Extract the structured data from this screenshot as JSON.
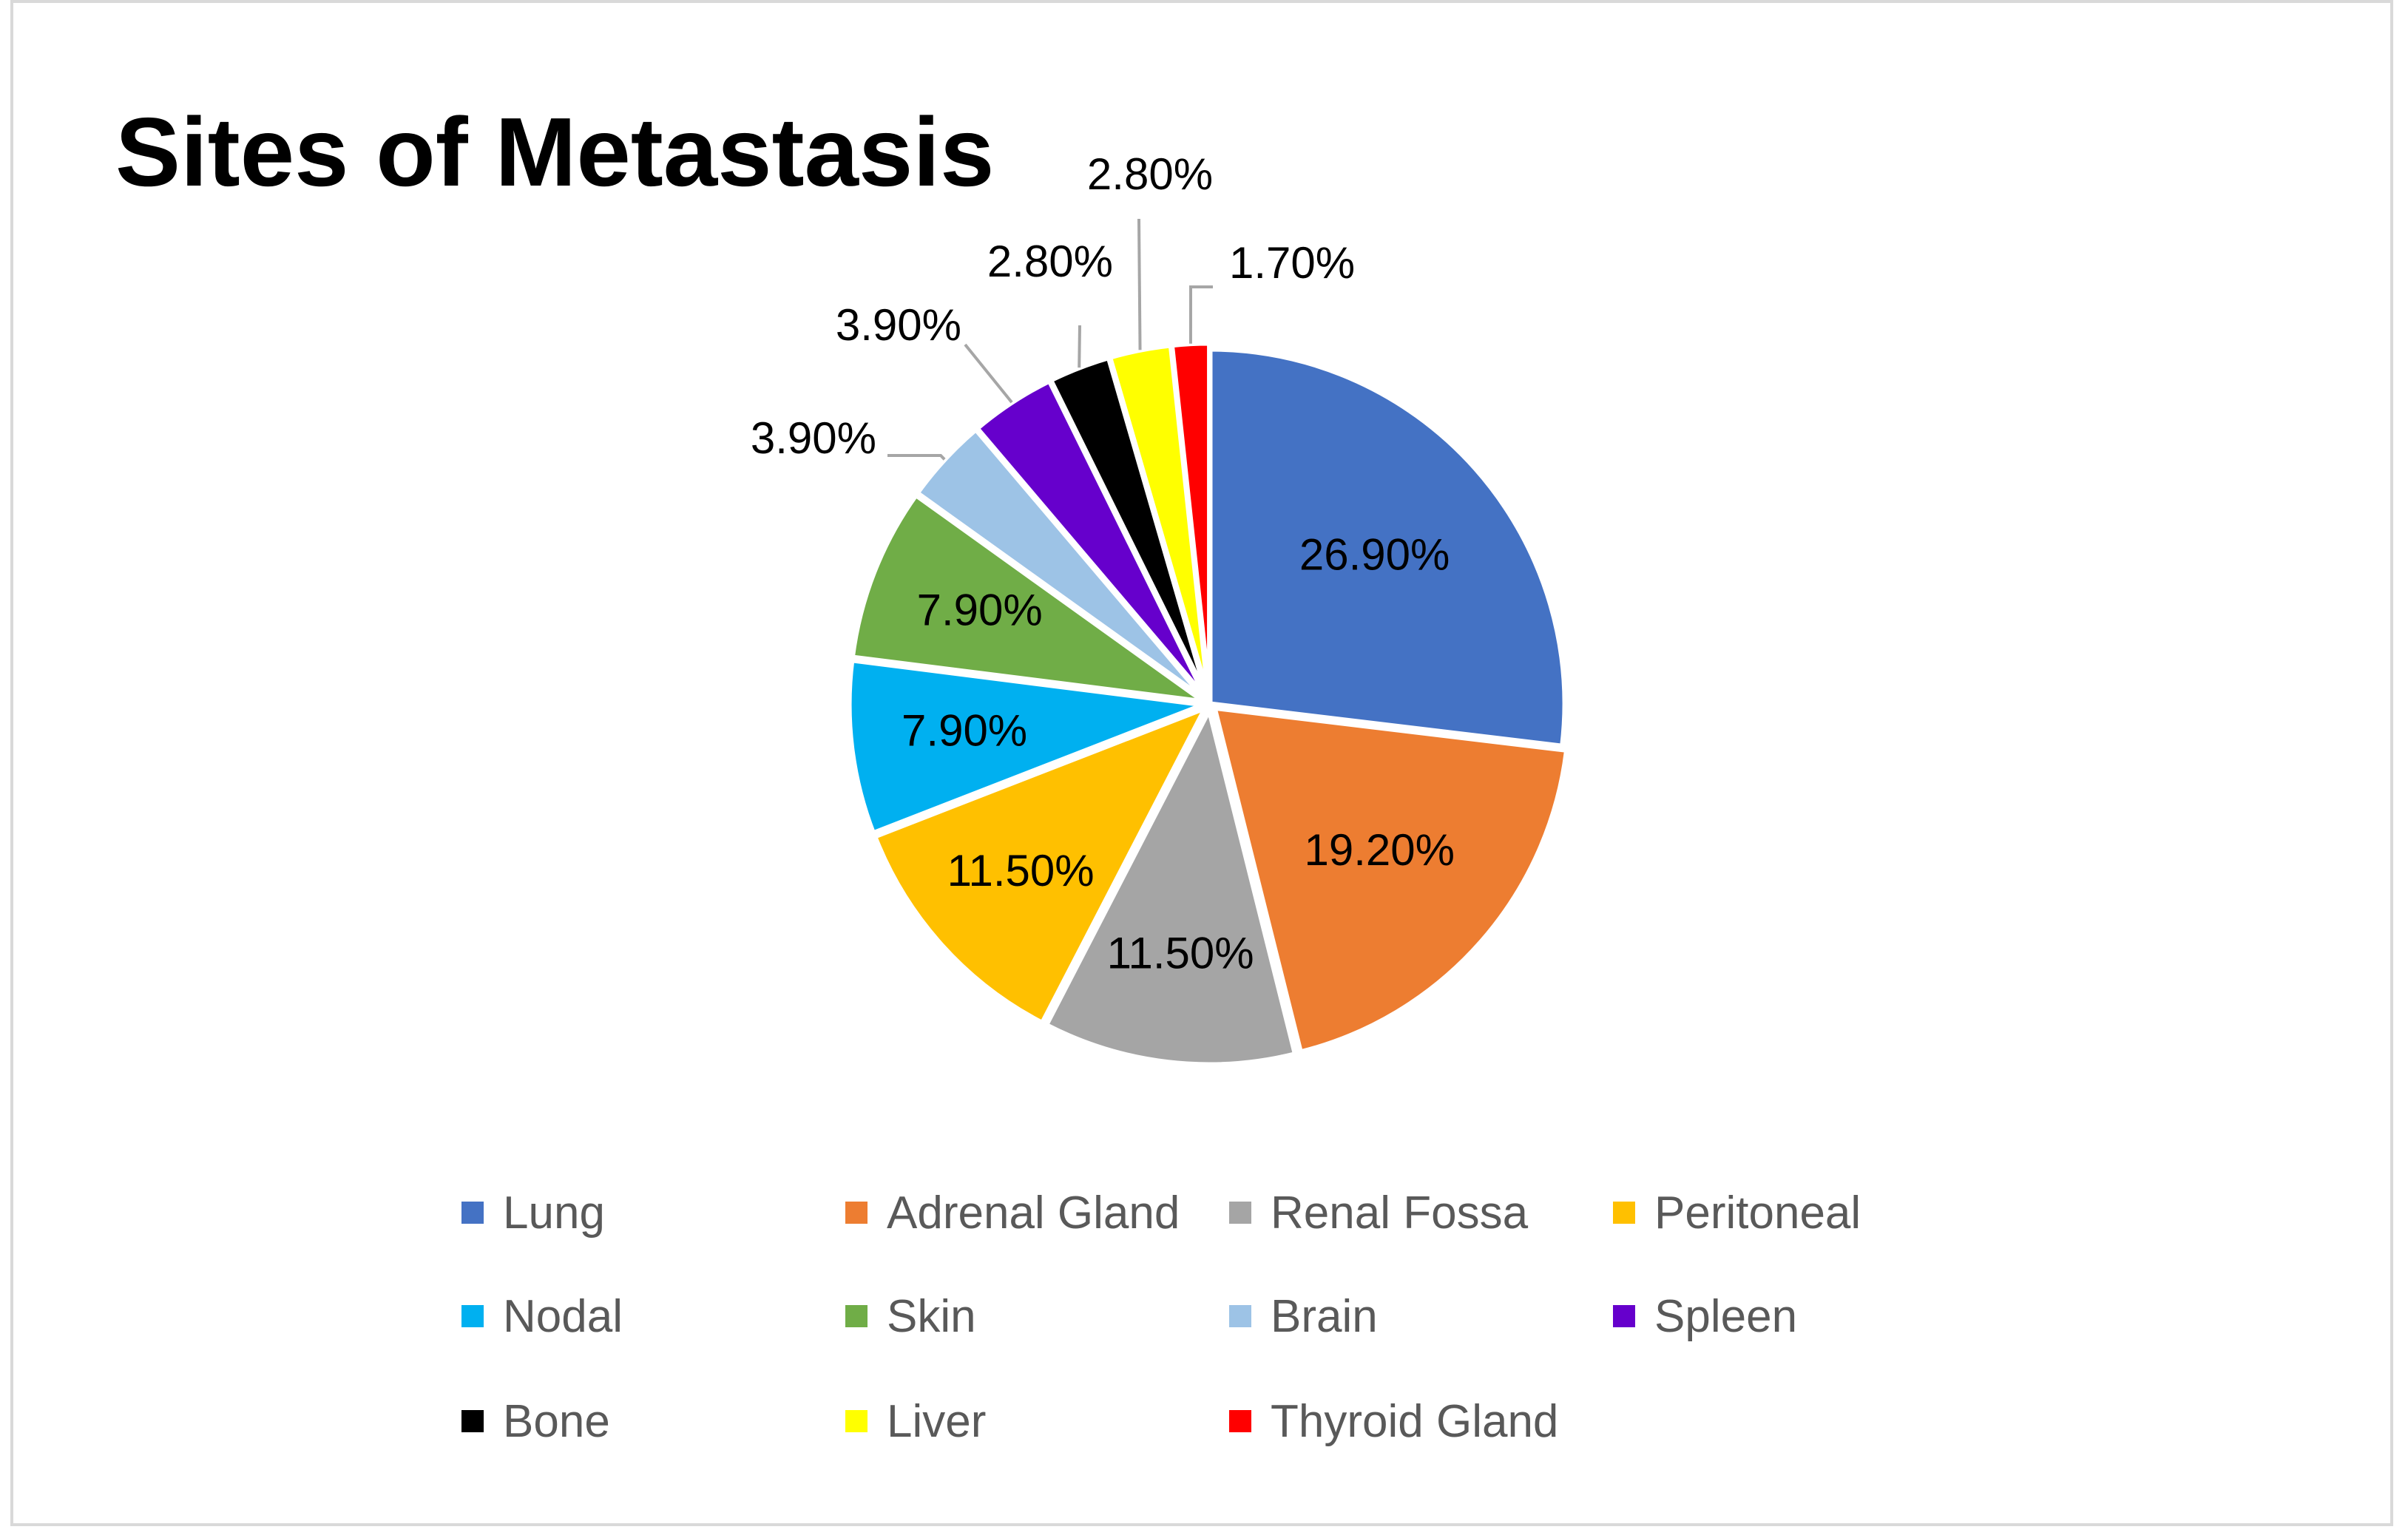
{
  "chart_data": {
    "type": "pie",
    "title": "Sites of Metastasis",
    "categories": [
      "Lung",
      "Adrenal Gland",
      "Renal Fossa",
      "Peritoneal",
      "Nodal",
      "Skin",
      "Brain",
      "Spleen",
      "Bone",
      "Liver",
      "Thyroid Gland"
    ],
    "values": [
      26.9,
      19.2,
      11.5,
      11.5,
      7.9,
      7.9,
      3.9,
      3.9,
      2.8,
      2.8,
      1.7
    ],
    "data_labels": [
      "26.90%",
      "19.20%",
      "11.50%",
      "11.50%",
      "7.90%",
      "7.90%",
      "3.90%",
      "3.90%",
      "2.80%",
      "2.80%",
      "1.70%"
    ],
    "colors": [
      "#4472C4",
      "#ED7D31",
      "#A5A5A5",
      "#FFC000",
      "#00B0F0",
      "#70AD47",
      "#9DC3E6",
      "#6600CC",
      "#000000",
      "#FFFF00",
      "#FF0000"
    ],
    "label_color": "#000000",
    "leader_line_color": "#A6A6A6",
    "slice_border_color": "#FFFFFF",
    "legend_placement": "bottom",
    "legend_text_color": "#595959",
    "frame_color": "#D9D9D9"
  }
}
